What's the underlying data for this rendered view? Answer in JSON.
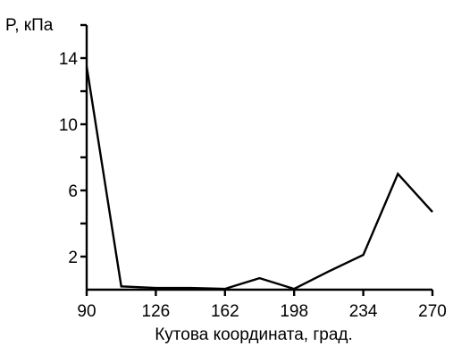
{
  "chart_data": {
    "type": "line",
    "xlabel": "Кутова координата, град.",
    "ylabel": "P, кПа",
    "xlim": [
      90,
      270
    ],
    "ylim": [
      0,
      16
    ],
    "x_ticks": [
      90,
      126,
      162,
      198,
      234,
      270
    ],
    "y_ticks": [
      2,
      6,
      10,
      14
    ],
    "y_minor_ticks": [
      4,
      8,
      12,
      16
    ],
    "grid": false,
    "series": [
      {
        "x": [
          90,
          108,
          126,
          144,
          162,
          180,
          198,
          216,
          234,
          252,
          270
        ],
        "values": [
          13.5,
          0.2,
          0.1,
          0.1,
          0.05,
          0.7,
          0.05,
          1.1,
          2.1,
          7.0,
          4.7
        ]
      }
    ]
  }
}
